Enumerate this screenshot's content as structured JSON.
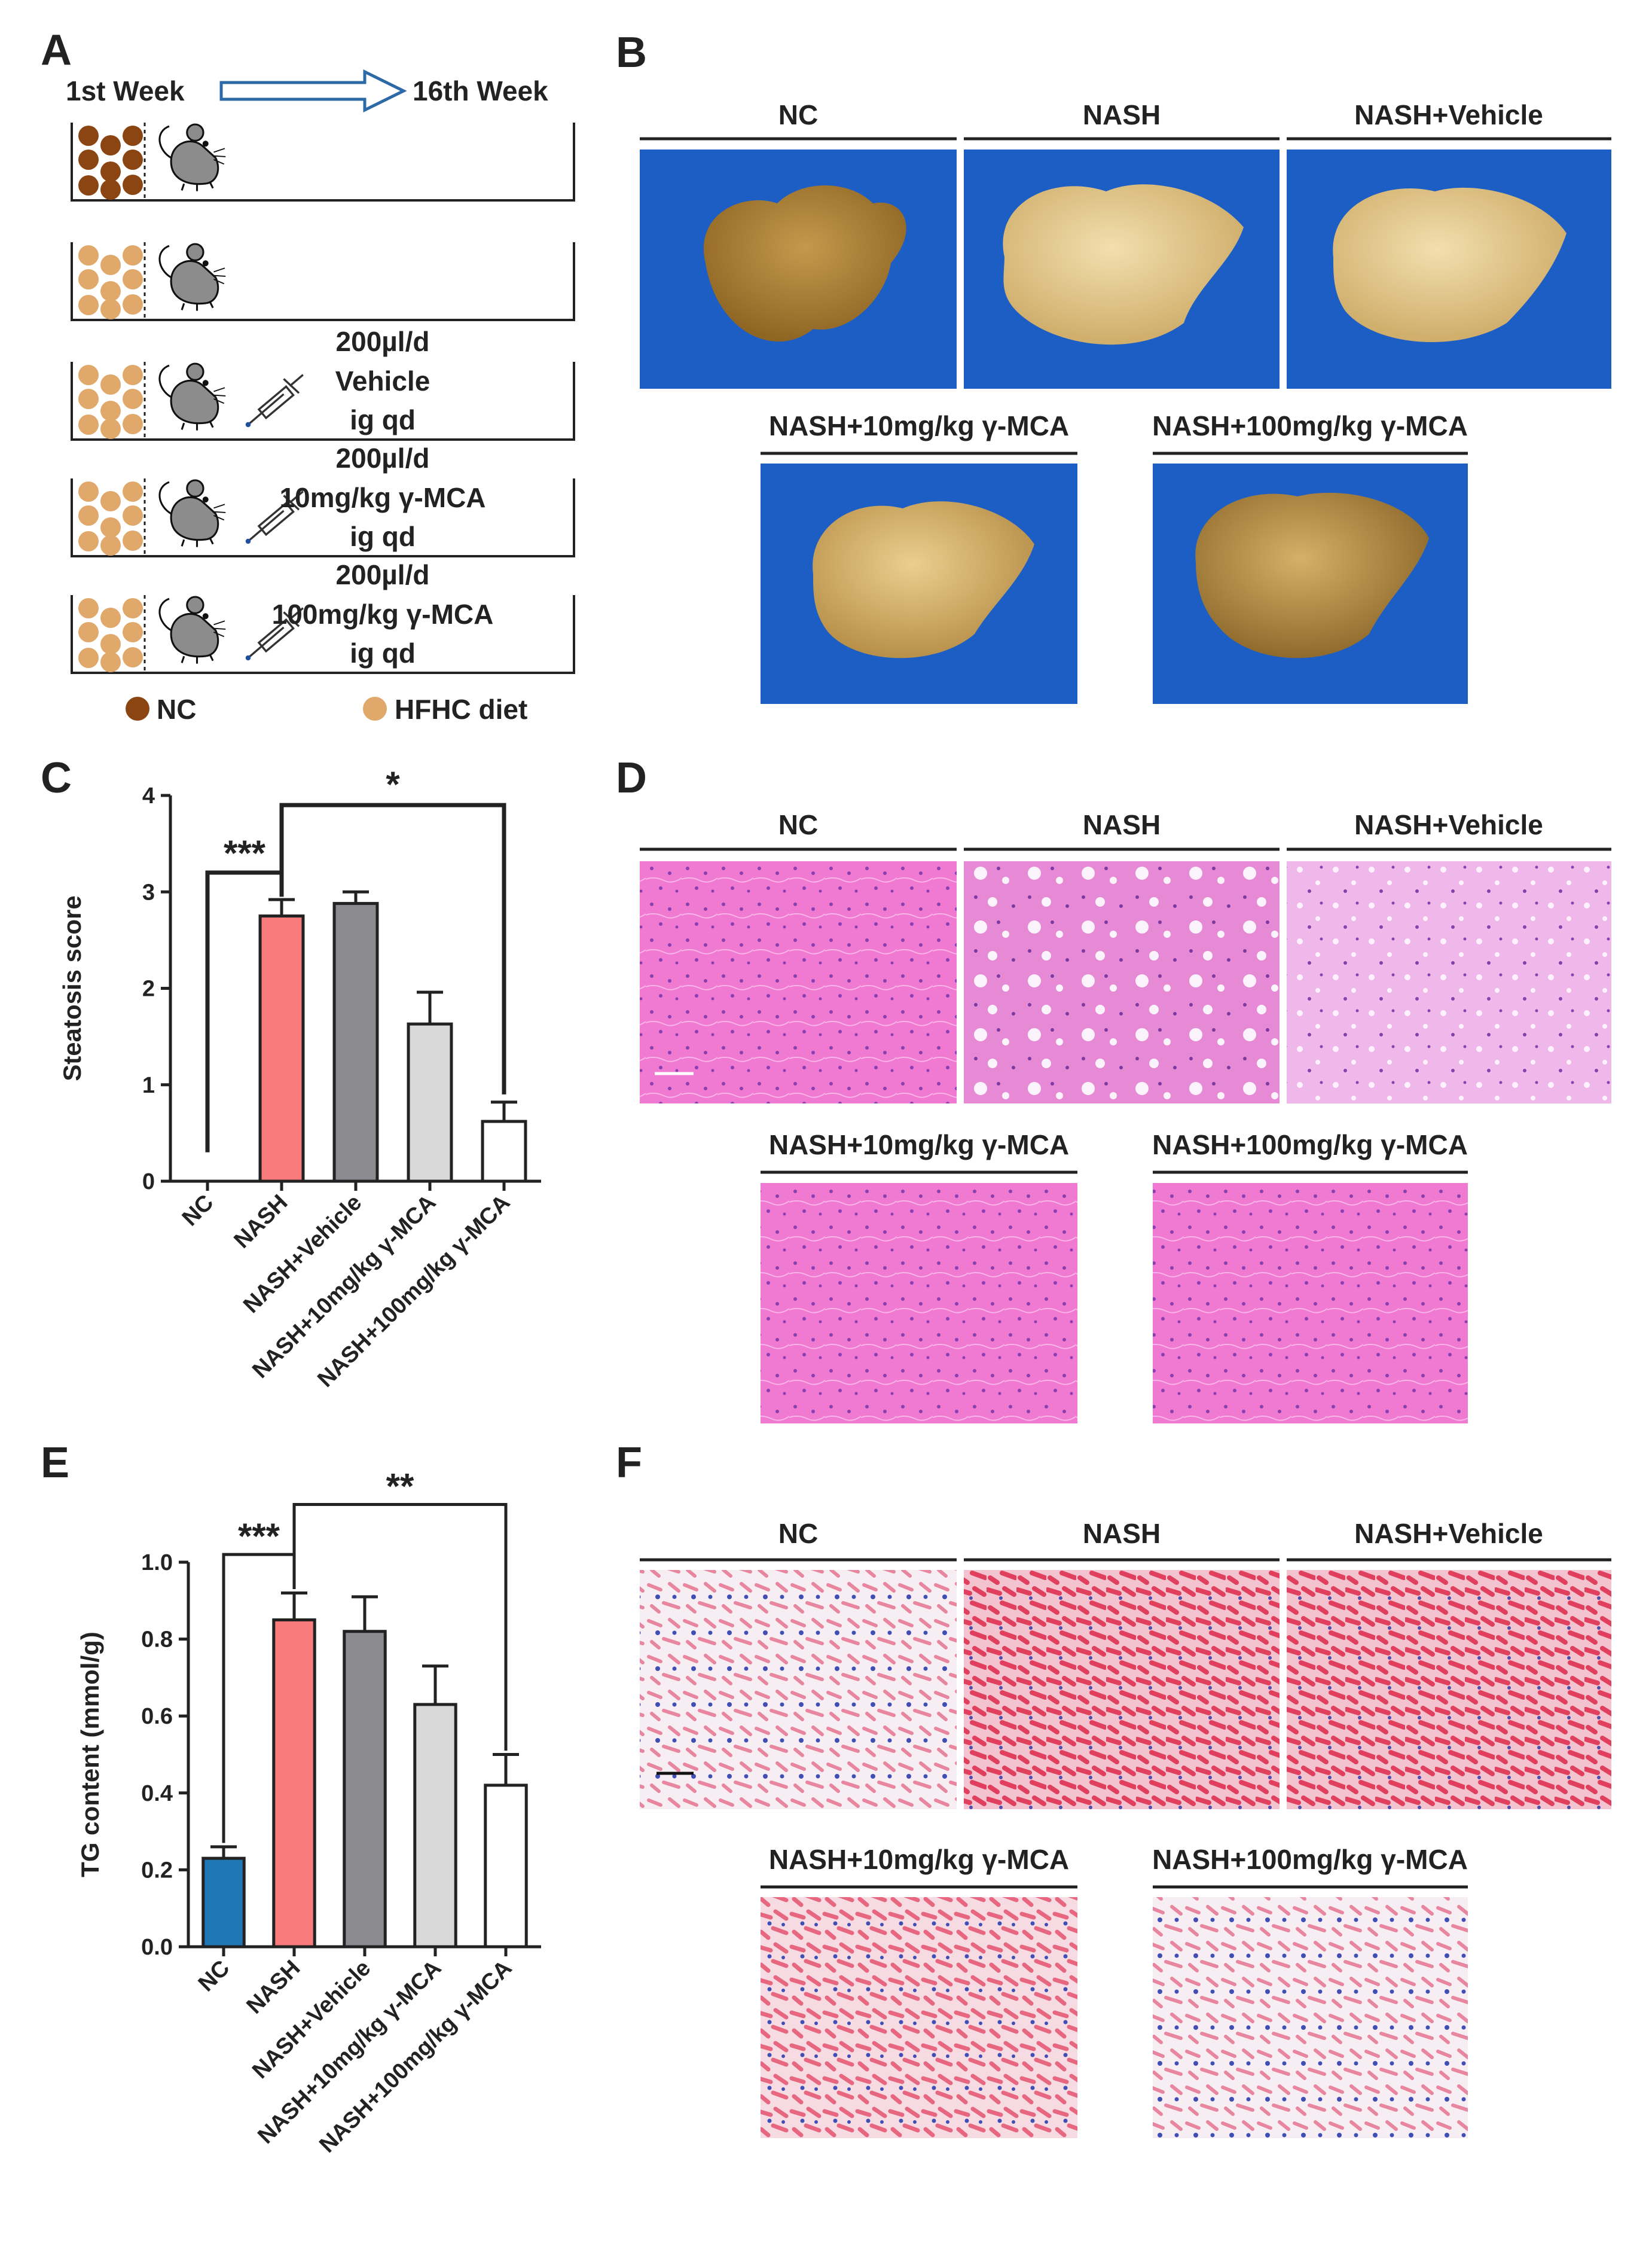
{
  "panels": {
    "A": {
      "letter": "A",
      "week_start": "1st Week",
      "week_end": "16th Week",
      "rows": [
        {
          "diet": "NC",
          "treatment_lines": []
        },
        {
          "diet": "HFHC",
          "treatment_lines": []
        },
        {
          "diet": "HFHC",
          "treatment_lines": [
            "200µl/d",
            "Vehicle",
            "ig qd"
          ]
        },
        {
          "diet": "HFHC",
          "treatment_lines": [
            "200µl/d",
            "10mg/kg γ-MCA",
            "ig qd"
          ]
        },
        {
          "diet": "HFHC",
          "treatment_lines": [
            "200µl/d",
            "100mg/kg γ-MCA",
            "ig qd"
          ]
        }
      ],
      "legend": [
        {
          "label": "NC",
          "color": "#8B4513"
        },
        {
          "label": "HFHC diet",
          "color": "#E0A86A"
        }
      ]
    },
    "B": {
      "letter": "B",
      "titles": [
        "NC",
        "NASH",
        "NASH+Vehicle",
        "NASH+10mg/kg γ-MCA",
        "NASH+100mg/kg γ-MCA"
      ]
    },
    "D": {
      "letter": "D",
      "titles": [
        "NC",
        "NASH",
        "NASH+Vehicle",
        "NASH+10mg/kg γ-MCA",
        "NASH+100mg/kg γ-MCA"
      ]
    },
    "F": {
      "letter": "F",
      "titles": [
        "NC",
        "NASH",
        "NASH+Vehicle",
        "NASH+10mg/kg γ-MCA",
        "NASH+100mg/kg γ-MCA"
      ]
    }
  },
  "chart_data": [
    {
      "panel": "C",
      "type": "bar",
      "letter": "C",
      "title": "",
      "xlabel": "",
      "ylabel": "Steatosis score",
      "ylim": [
        0,
        4
      ],
      "yticks": [
        0,
        1,
        2,
        3,
        4
      ],
      "categories": [
        "NC",
        "NASH",
        "NASH+Vehicle",
        "NASH+10mg/kg γ-MCA",
        "NASH+100mg/kg γ-MCA"
      ],
      "values": [
        0,
        2.75,
        2.88,
        1.63,
        0.62
      ],
      "errors": [
        0,
        0.17,
        0.12,
        0.33,
        0.2
      ],
      "colors": [
        "#1F77B4",
        "#F97B7B",
        "#8C8C90",
        "#D9D9D9",
        "#FFFFFF"
      ],
      "significance": [
        {
          "from": 0,
          "to": 1,
          "label": "***"
        },
        {
          "from": 1,
          "to": 4,
          "label": "*"
        }
      ]
    },
    {
      "panel": "E",
      "type": "bar",
      "letter": "E",
      "title": "",
      "xlabel": "",
      "ylabel": "TG content (mmol/g)",
      "ylim": [
        0,
        1.0
      ],
      "yticks": [
        "0.0",
        "0.2",
        "0.4",
        "0.6",
        "0.8",
        "1.0"
      ],
      "categories": [
        "NC",
        "NASH",
        "NASH+Vehicle",
        "NASH+10mg/kg γ-MCA",
        "NASH+100mg/kg γ-MCA"
      ],
      "values": [
        0.23,
        0.85,
        0.82,
        0.63,
        0.42
      ],
      "errors": [
        0.03,
        0.07,
        0.09,
        0.1,
        0.08
      ],
      "colors": [
        "#1F77B4",
        "#F97B7B",
        "#8C8C90",
        "#D9D9D9",
        "#FFFFFF"
      ],
      "significance": [
        {
          "from": 0,
          "to": 1,
          "label": "***"
        },
        {
          "from": 1,
          "to": 4,
          "label": "**"
        }
      ]
    }
  ]
}
